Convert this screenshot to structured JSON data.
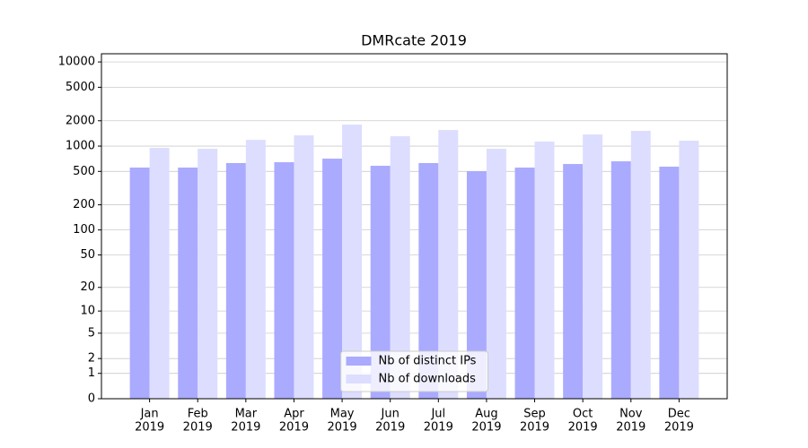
{
  "chart_data": {
    "type": "bar",
    "title": "DMRcate 2019",
    "categories": [
      [
        "Jan",
        "2019"
      ],
      [
        "Feb",
        "2019"
      ],
      [
        "Mar",
        "2019"
      ],
      [
        "Apr",
        "2019"
      ],
      [
        "May",
        "2019"
      ],
      [
        "Jun",
        "2019"
      ],
      [
        "Jul",
        "2019"
      ],
      [
        "Aug",
        "2019"
      ],
      [
        "Sep",
        "2019"
      ],
      [
        "Oct",
        "2019"
      ],
      [
        "Nov",
        "2019"
      ],
      [
        "Dec",
        "2019"
      ]
    ],
    "series": [
      {
        "name": "Nb of distinct IPs",
        "color": "#aaaaff",
        "values": [
          555,
          555,
          628,
          643,
          709,
          583,
          628,
          503,
          555,
          612,
          659,
          569
        ]
      },
      {
        "name": "Nb of downloads",
        "color": "#ddddff",
        "values": [
          952,
          929,
          1186,
          1342,
          1799,
          1309,
          1553,
          929,
          1130,
          1374,
          1517,
          1159
        ]
      }
    ],
    "yscale": "log1p",
    "ylim": [
      0,
      12500
    ],
    "yticks": [
      0,
      1,
      2,
      5,
      10,
      20,
      50,
      100,
      200,
      500,
      1000,
      2000,
      5000,
      10000
    ],
    "grid": true,
    "legend": "lower center"
  }
}
